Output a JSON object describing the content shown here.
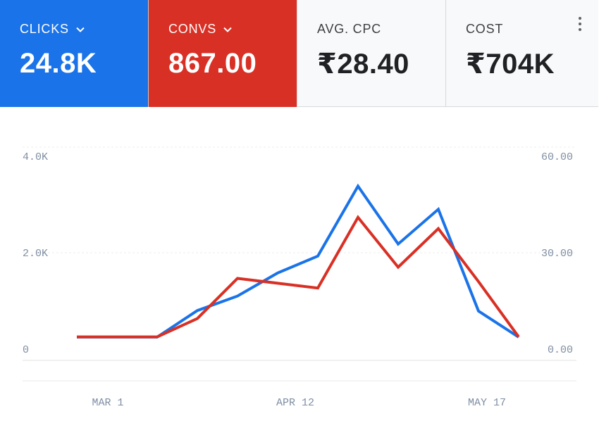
{
  "metrics": [
    {
      "label": "CLICKS",
      "value": "24.8K",
      "color": "#1a73e8",
      "dropdown": true
    },
    {
      "label": "CONVS",
      "value": "867.00",
      "color": "#d93025",
      "dropdown": true
    },
    {
      "label": "AVG. CPC",
      "value": "₹28.40"
    },
    {
      "label": "COST",
      "value": "₹704K"
    }
  ],
  "icons": {
    "dropdown": "chevron-down-icon",
    "menu": "more-vert-icon"
  },
  "chart_data": {
    "type": "line",
    "x": [
      "",
      "",
      "",
      "",
      "",
      "",
      "",
      "",
      "",
      "",
      "",
      ""
    ],
    "xticks": [
      "MAR 1",
      "APR 12",
      "MAY 17"
    ],
    "y_left": {
      "ticks": [
        "0",
        "2.0K",
        "4.0K"
      ],
      "ylim": [
        0,
        4000
      ]
    },
    "y_right": {
      "ticks": [
        "0.00",
        "30.00",
        "60.00"
      ],
      "ylim": [
        0,
        60
      ]
    },
    "grid": true,
    "series": [
      {
        "color": "#1a73e8",
        "axis": "left",
        "values": [
          250,
          250,
          250,
          800,
          1100,
          1580,
          1930,
          3380,
          2180,
          2900,
          790,
          250
        ]
      },
      {
        "color": "#d93025",
        "axis": "right",
        "values": [
          3.8,
          3.8,
          3.8,
          9.5,
          22.0,
          20.5,
          19.0,
          41.0,
          25.5,
          37.5,
          21.0,
          3.8
        ]
      }
    ]
  }
}
